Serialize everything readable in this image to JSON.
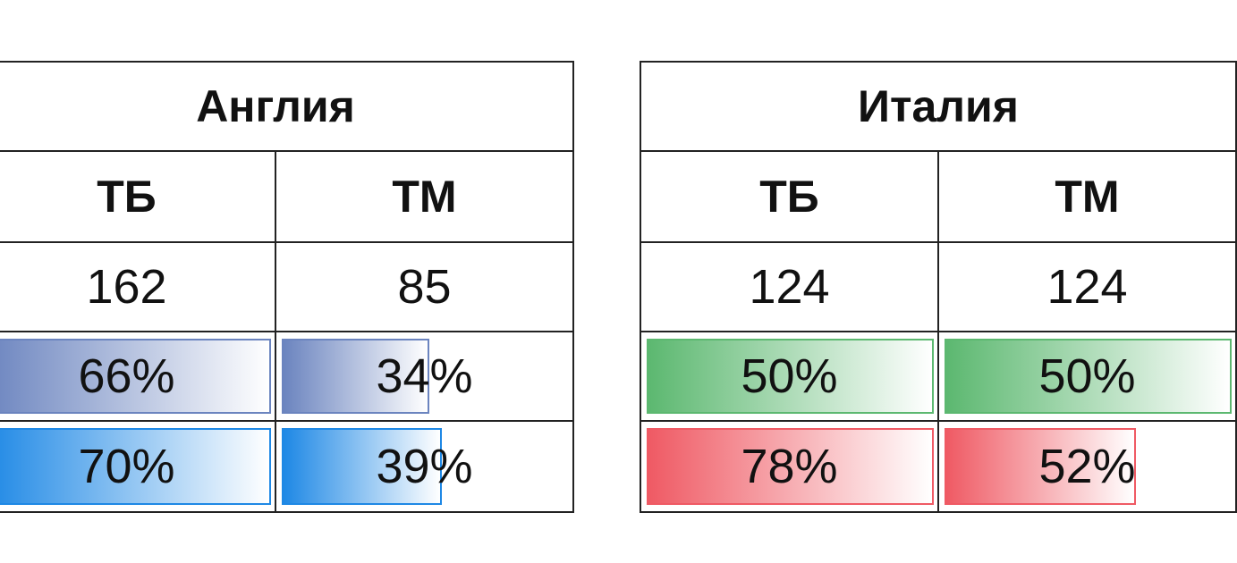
{
  "tables": [
    {
      "title": "Англия",
      "headers": [
        "ТБ",
        "ТМ"
      ],
      "counts": [
        "162",
        "85"
      ],
      "pct_rows": [
        {
          "values": [
            66,
            34
          ],
          "value_labels": [
            "66%",
            "34%"
          ],
          "color": "#6b84bf"
        },
        {
          "values": [
            70,
            39
          ],
          "value_labels": [
            "70%",
            "39%"
          ],
          "color": "#1e88e5"
        }
      ]
    },
    {
      "title": "Италия",
      "headers": [
        "ТБ",
        "ТМ"
      ],
      "counts": [
        "124",
        "124"
      ],
      "pct_rows": [
        {
          "values": [
            50,
            50
          ],
          "value_labels": [
            "50%",
            "50%"
          ],
          "color": "#5cb870"
        },
        {
          "values": [
            78,
            52
          ],
          "value_labels": [
            "78%",
            "52%"
          ],
          "color": "#ef5a64"
        }
      ]
    }
  ]
}
